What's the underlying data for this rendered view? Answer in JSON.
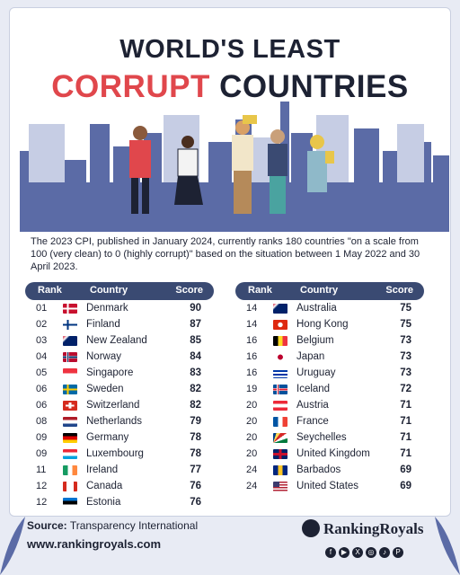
{
  "title_line1": "WORLD'S LEAST",
  "title_line2_red": "CORRUPT",
  "title_line2_dark": "COUNTRIES",
  "description": "The 2023 CPI, published in January 2024, currently ranks 180 countries \"on a scale from 100 (very clean) to 0 (highly corrupt)\" based on the situation between 1 May 2022 and 30 April 2023.",
  "headers": {
    "rank": "Rank",
    "country": "Country",
    "score": "Score"
  },
  "left_rows": [
    {
      "rank": "01",
      "country": "Denmark",
      "score": "90",
      "flag": "dk"
    },
    {
      "rank": "02",
      "country": "Finland",
      "score": "87",
      "flag": "fi"
    },
    {
      "rank": "03",
      "country": "New Zealand",
      "score": "85",
      "flag": "nz"
    },
    {
      "rank": "04",
      "country": "Norway",
      "score": "84",
      "flag": "no"
    },
    {
      "rank": "05",
      "country": "Singapore",
      "score": "83",
      "flag": "sg"
    },
    {
      "rank": "06",
      "country": "Sweden",
      "score": "82",
      "flag": "se"
    },
    {
      "rank": "06",
      "country": "Switzerland",
      "score": "82",
      "flag": "ch"
    },
    {
      "rank": "08",
      "country": "Netherlands",
      "score": "79",
      "flag": "nl"
    },
    {
      "rank": "09",
      "country": "Germany",
      "score": "78",
      "flag": "de"
    },
    {
      "rank": "09",
      "country": "Luxembourg",
      "score": "78",
      "flag": "lu"
    },
    {
      "rank": "11",
      "country": "Ireland",
      "score": "77",
      "flag": "ie"
    },
    {
      "rank": "12",
      "country": "Canada",
      "score": "76",
      "flag": "ca"
    },
    {
      "rank": "12",
      "country": "Estonia",
      "score": "76",
      "flag": "ee"
    }
  ],
  "right_rows": [
    {
      "rank": "14",
      "country": "Australia",
      "score": "75",
      "flag": "au"
    },
    {
      "rank": "14",
      "country": "Hong Kong",
      "score": "75",
      "flag": "hk"
    },
    {
      "rank": "16",
      "country": "Belgium",
      "score": "73",
      "flag": "be"
    },
    {
      "rank": "16",
      "country": "Japan",
      "score": "73",
      "flag": "jp"
    },
    {
      "rank": "16",
      "country": "Uruguay",
      "score": "73",
      "flag": "uy"
    },
    {
      "rank": "19",
      "country": "Iceland",
      "score": "72",
      "flag": "is"
    },
    {
      "rank": "20",
      "country": "Austria",
      "score": "71",
      "flag": "at"
    },
    {
      "rank": "20",
      "country": "France",
      "score": "71",
      "flag": "fr"
    },
    {
      "rank": "20",
      "country": "Seychelles",
      "score": "71",
      "flag": "sc"
    },
    {
      "rank": "20",
      "country": "United Kingdom",
      "score": "71",
      "flag": "gb"
    },
    {
      "rank": "24",
      "country": "Barbados",
      "score": "69",
      "flag": "bb"
    },
    {
      "rank": "24",
      "country": "United States",
      "score": "69",
      "flag": "us"
    }
  ],
  "source_label": "Source:",
  "source_value": "Transparency International",
  "website": "www.rankingroyals.com",
  "brand_name": "RankingRoyals",
  "social_icons": [
    "facebook-icon",
    "youtube-icon",
    "x-icon",
    "instagram-icon",
    "tiktok-icon",
    "pinterest-icon"
  ],
  "colors": {
    "accent_red": "#e0474c",
    "header_navy": "#3a4a72",
    "skyline": "#5b6ba6"
  }
}
